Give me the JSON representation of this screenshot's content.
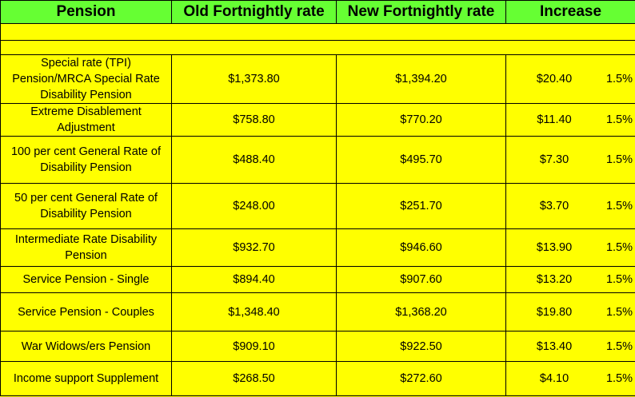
{
  "table": {
    "headers": [
      "Pension",
      "Old Fortnightly rate",
      "New Fortnightly rate",
      "Increase"
    ],
    "rows": [
      {
        "name": "Special rate (TPI) Pension/MRCA Special Rate Disability Pension",
        "old": "$1,373.80",
        "new": "$1,394.20",
        "increase": "$20.40",
        "percent": "1.5%"
      },
      {
        "name": "Extreme Disablement Adjustment",
        "old": "$758.80",
        "new": "$770.20",
        "increase": "$11.40",
        "percent": "1.5%"
      },
      {
        "name": "100 per cent General Rate of Disability Pension",
        "old": "$488.40",
        "new": "$495.70",
        "increase": "$7.30",
        "percent": "1.5%"
      },
      {
        "name": "50 per cent General Rate of Disability Pension",
        "old": "$248.00",
        "new": "$251.70",
        "increase": "$3.70",
        "percent": "1.5%"
      },
      {
        "name": "Intermediate Rate Disability Pension",
        "old": "$932.70",
        "new": "$946.60",
        "increase": "$13.90",
        "percent": "1.5%"
      },
      {
        "name": "Service Pension - Single",
        "old": "$894.40",
        "new": "$907.60",
        "increase": "$13.20",
        "percent": "1.5%"
      },
      {
        "name": "Service Pension - Couples",
        "old": "$1,348.40",
        "new": "$1,368.20",
        "increase": "$19.80",
        "percent": "1.5%"
      },
      {
        "name": "War Widows/ers Pension",
        "old": "$909.10",
        "new": "$922.50",
        "increase": "$13.40",
        "percent": "1.5%"
      },
      {
        "name": "Income support Supplement",
        "old": "$268.50",
        "new": "$272.60",
        "increase": "$4.10",
        "percent": "1.5%"
      }
    ]
  },
  "colors": {
    "header_bg": "#66ff33",
    "body_bg": "#ffff00"
  }
}
